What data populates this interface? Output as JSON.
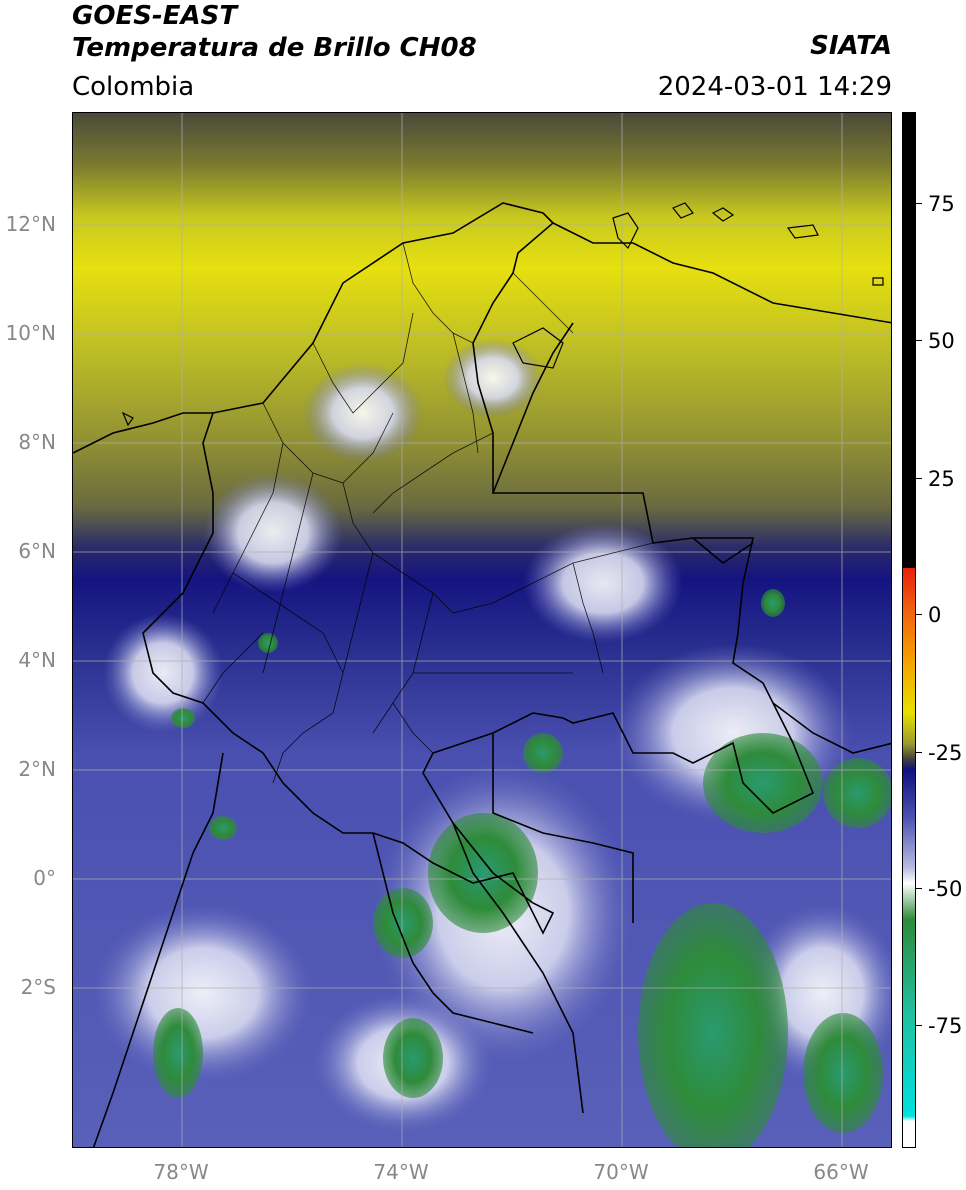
{
  "header": {
    "satellite": "GOES-EAST",
    "product": "Temperatura de Brillo CH08",
    "region": "Colombia",
    "agency": "SIATA",
    "timestamp": "2024-03-01 14:29"
  },
  "map": {
    "lat_labels": [
      "12°N",
      "10°N",
      "8°N",
      "6°N",
      "4°N",
      "2°N",
      "0°",
      "2°S"
    ],
    "lon_labels": [
      "78°W",
      "74°W",
      "70°W",
      "66°W"
    ],
    "gridline_color": "#b0b0b0",
    "boundary_color": "#000000"
  },
  "colorbar": {
    "tick_labels": [
      "75",
      "50",
      "25",
      "0",
      "-25",
      "-50",
      "-75"
    ],
    "colors": {
      "warm": "#000000",
      "red": "#e8200a",
      "orange": "#f5a200",
      "yellow": "#e8e000",
      "olive": "#9a9a30",
      "dark_gray": "#404040",
      "navy": "#101080",
      "blue": "#4a50b0",
      "lavender": "#b8bce0",
      "white": "#ffffff",
      "green": "#2e8b3a",
      "teal": "#20c0a0",
      "cyan": "#00e0e0"
    }
  }
}
